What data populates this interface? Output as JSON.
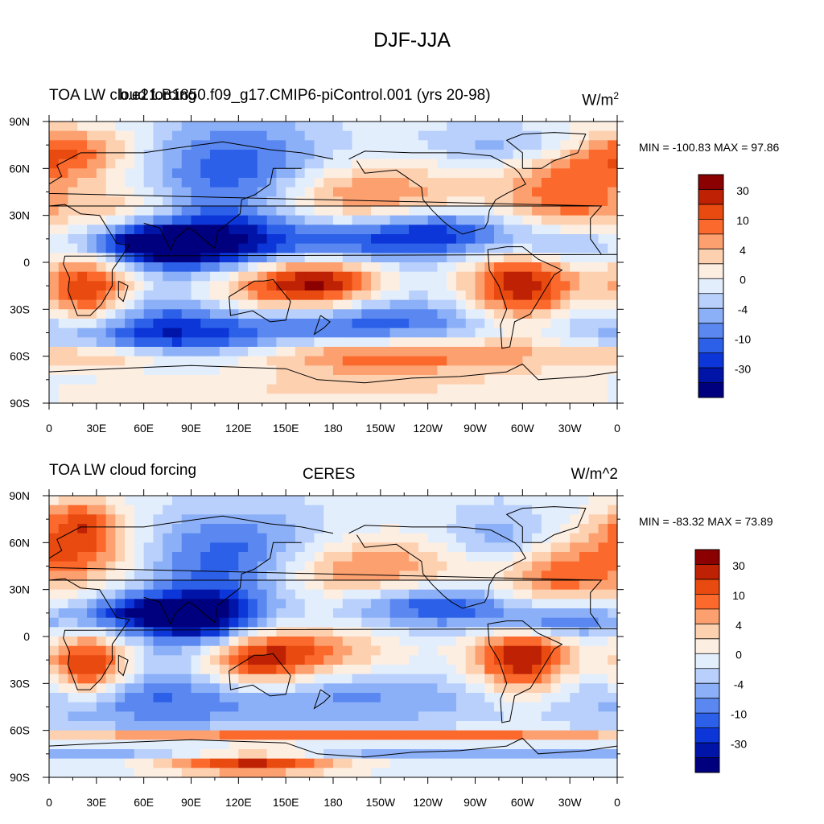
{
  "figure": {
    "title": "DJF-JJA"
  },
  "chart_data": [
    {
      "type": "heatmap",
      "panel_id": "model",
      "left_title": "TOA LW cloud forcing",
      "center_title": "b.e21.B1850.f09_g17.CMIP6-piControl.001 (yrs 20-98)",
      "units": "W/m",
      "units_sup": "2",
      "stats_text": "MIN = -100.83 MAX =  97.86",
      "min": -100.83,
      "max": 97.86,
      "lat_ticks": [
        "90N",
        "60N",
        "30N",
        "0",
        "30S",
        "60S",
        "90S"
      ],
      "lon_ticks": [
        "0",
        "30E",
        "60E",
        "90E",
        "120E",
        "150E",
        "180",
        "150W",
        "120W",
        "90W",
        "60W",
        "30W",
        "0"
      ],
      "xlim": [
        0,
        360
      ],
      "ylim": [
        -90,
        90
      ],
      "colorbar_labels": [
        "30",
        "10",
        "4",
        "0",
        "-4",
        "-10",
        "-30"
      ],
      "colorbar_colors": [
        "#8b0000",
        "#be2104",
        "#e84a10",
        "#fb6a2c",
        "#fca070",
        "#fdd0b0",
        "#fdeee2",
        "#e3eefc",
        "#b8d0fb",
        "#8cb0f8",
        "#5a88f0",
        "#2c60e8",
        "#0c36d8",
        "#0015a8",
        "#00007f"
      ]
    },
    {
      "type": "heatmap",
      "panel_id": "obs",
      "left_title": "TOA LW cloud forcing",
      "center_title": "CERES",
      "units": "W/m^2",
      "stats_text": "MIN = -83.32 MAX =  73.89",
      "min": -83.32,
      "max": 73.89,
      "lat_ticks": [
        "90N",
        "60N",
        "30N",
        "0",
        "30S",
        "60S",
        "90S"
      ],
      "lon_ticks": [
        "0",
        "30E",
        "60E",
        "90E",
        "120E",
        "150E",
        "180",
        "150W",
        "120W",
        "90W",
        "60W",
        "30W",
        "0"
      ],
      "xlim": [
        0,
        360
      ],
      "ylim": [
        -90,
        90
      ],
      "colorbar_labels": [
        "30",
        "10",
        "4",
        "0",
        "-4",
        "-10",
        "-30"
      ],
      "colorbar_colors": [
        "#8b0000",
        "#be2104",
        "#e84a10",
        "#fb6a2c",
        "#fca070",
        "#fdd0b0",
        "#fdeee2",
        "#e3eefc",
        "#b8d0fb",
        "#8cb0f8",
        "#5a88f0",
        "#2c60e8",
        "#0c36d8",
        "#0015a8",
        "#00007f"
      ]
    }
  ]
}
